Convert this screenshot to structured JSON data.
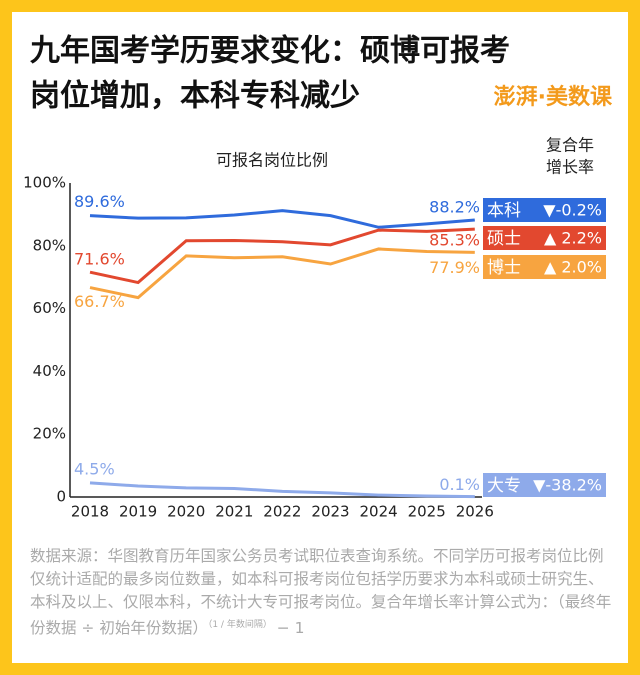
{
  "title_lines": [
    "九年国考学历要求变化：硕博可报考",
    "岗位增加，本科专科减少"
  ],
  "logo": "澎湃·美数课",
  "chart_data": {
    "type": "line",
    "subtitle": "可报名岗位比例",
    "legend_title": [
      "复合年",
      "增长率"
    ],
    "categories": [
      "2018",
      "2019",
      "2020",
      "2021",
      "2022",
      "2023",
      "2024",
      "2025",
      "2026"
    ],
    "ylim": [
      0,
      100
    ],
    "yticks": [
      0,
      {
        "value": 20,
        "label": "20%"
      },
      {
        "value": 40,
        "label": "40%"
      },
      {
        "value": 60,
        "label": "60%"
      },
      {
        "value": 80,
        "label": "80%"
      },
      {
        "value": 100,
        "label": "100%"
      }
    ],
    "series": [
      {
        "name": "本科",
        "color": "#2f6bdc",
        "growth": "▼-0.2%",
        "values": [
          89.6,
          88.8,
          88.9,
          89.8,
          91.2,
          89.6,
          85.9,
          87.0,
          88.2
        ],
        "value_labels": [
          "89.6%",
          null,
          null,
          null,
          null,
          null,
          null,
          null,
          "88.2%"
        ]
      },
      {
        "name": "硕士",
        "color": "#e2482f",
        "growth": "▲ 2.2%",
        "values": [
          71.6,
          68.3,
          81.6,
          81.7,
          81.3,
          80.3,
          85.0,
          84.6,
          85.3
        ],
        "value_labels": [
          "71.6%",
          null,
          null,
          null,
          null,
          null,
          null,
          null,
          "85.3%"
        ]
      },
      {
        "name": "博士",
        "color": "#f7a440",
        "growth": "▲ 2.0%",
        "values": [
          66.7,
          63.5,
          76.8,
          76.2,
          76.5,
          74.2,
          79.0,
          78.2,
          77.9
        ],
        "value_labels": [
          "66.7%",
          null,
          null,
          null,
          null,
          null,
          null,
          null,
          "77.9%"
        ]
      },
      {
        "name": "大专",
        "color": "#8eaaea",
        "growth": "▼-38.2%",
        "values": [
          4.5,
          3.5,
          2.9,
          2.7,
          1.8,
          1.3,
          0.6,
          0.3,
          0.1
        ],
        "value_labels": [
          "4.5%",
          null,
          null,
          null,
          null,
          null,
          null,
          null,
          "0.1%"
        ]
      }
    ]
  },
  "footnote": {
    "text": "数据来源：华图教育历年国家公务员考试职位表查询系统。不同学历可报考岗位比例仅统计适配的最多岗位数量，如本科可报考岗位包括学历要求为本科或硕士研究生、本科及以上、仅限本科，不统计大专可报考岗位。复合年增长率计算公式为：（最终年份数据 ÷ 初始年份数据）",
    "exponent": "（1 / 年数间隔）",
    "tail": " − 1"
  }
}
